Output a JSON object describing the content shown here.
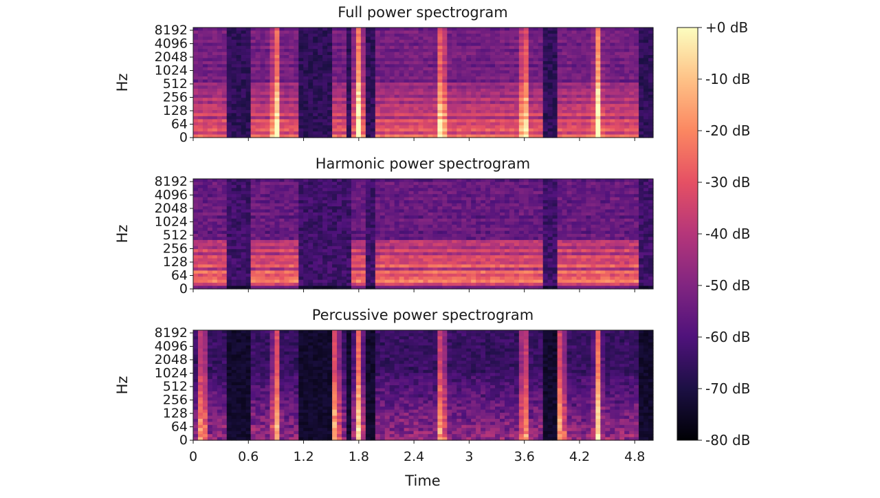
{
  "chart_data": {
    "type": "heatmap",
    "colormap": "magma",
    "xlabel": "Time",
    "x_ticks": [
      "0",
      "0.6",
      "1.2",
      "1.8",
      "2.4",
      "3",
      "3.6",
      "4.2",
      "4.8"
    ],
    "x_tick_values": [
      0,
      0.6,
      1.2,
      1.8,
      2.4,
      3.0,
      3.6,
      4.2,
      4.8
    ],
    "xlim": [
      0,
      5.0
    ],
    "ylabel": "Hz",
    "y_scale": "log",
    "y_ticks": [
      "0",
      "64",
      "128",
      "256",
      "512",
      "1024",
      "2048",
      "4096",
      "8192"
    ],
    "y_tick_values": [
      0,
      64,
      128,
      256,
      512,
      1024,
      2048,
      4096,
      8192
    ],
    "colorbar": {
      "ticks": [
        "+0 dB",
        "-10 dB",
        "-20 dB",
        "-30 dB",
        "-40 dB",
        "-50 dB",
        "-60 dB",
        "-70 dB",
        "-80 dB"
      ],
      "range_db": [
        -80,
        0
      ]
    },
    "panels": [
      {
        "title": "Full power spectrogram",
        "vertical_events_s": [
          0.9,
          1.8,
          2.7,
          3.6,
          4.4
        ],
        "voiced_segments_s": [
          [
            0.0,
            0.35
          ],
          [
            0.6,
            1.15
          ],
          [
            1.5,
            1.65
          ],
          [
            1.7,
            1.85
          ],
          [
            2.0,
            2.55
          ],
          [
            2.55,
            3.1
          ],
          [
            3.1,
            3.8
          ],
          [
            3.95,
            4.85
          ]
        ]
      },
      {
        "title": "Harmonic power spectrogram",
        "voiced_segments_s": [
          [
            0.0,
            0.35
          ],
          [
            0.6,
            1.15
          ],
          [
            1.7,
            1.85
          ],
          [
            2.0,
            2.55
          ],
          [
            2.55,
            3.1
          ],
          [
            3.1,
            3.8
          ],
          [
            3.95,
            4.85
          ]
        ]
      },
      {
        "title": "Percussive power spectrogram",
        "vertical_events_s": [
          0.1,
          0.9,
          1.55,
          1.8,
          2.7,
          3.6,
          4.0,
          4.4
        ],
        "voiced_segments_s": [
          [
            0.0,
            0.35
          ],
          [
            0.6,
            1.15
          ],
          [
            1.5,
            1.65
          ],
          [
            1.7,
            1.85
          ],
          [
            2.0,
            3.1
          ],
          [
            3.1,
            3.8
          ],
          [
            3.95,
            4.85
          ]
        ]
      }
    ]
  }
}
